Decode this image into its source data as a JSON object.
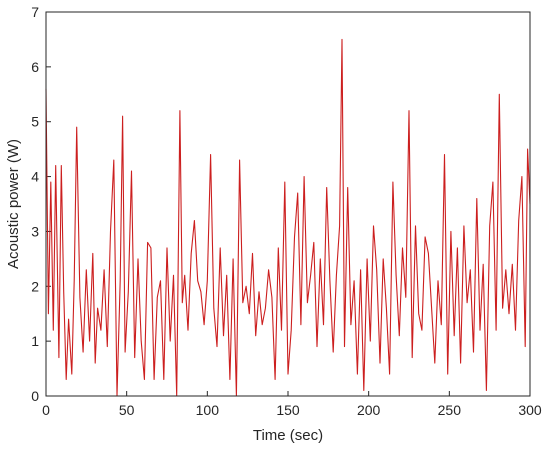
{
  "chart_data": {
    "type": "line",
    "title": "",
    "xlabel": "Time (sec)",
    "ylabel": "Acoustic power (W)",
    "xlim": [
      0,
      300
    ],
    "ylim": [
      0,
      7
    ],
    "xticks": [
      0,
      50,
      100,
      150,
      200,
      250,
      300
    ],
    "yticks": [
      0,
      1,
      2,
      3,
      4,
      5,
      6,
      7
    ],
    "grid": false,
    "legend": "none",
    "line_color": "#cc1f1f",
    "series": [
      {
        "x": [
          0,
          1.5,
          3,
          4.5,
          6,
          8,
          9.5,
          11,
          12.5,
          14,
          16,
          17.5,
          19,
          21,
          23,
          25,
          27,
          29,
          30.5,
          32,
          34,
          36,
          38,
          40,
          42,
          44,
          46,
          47.5,
          49,
          51,
          53,
          55,
          57,
          59,
          61,
          63,
          65,
          67,
          69,
          71,
          73,
          75,
          77,
          79,
          81,
          83,
          84.5,
          86,
          88,
          90,
          92,
          94,
          96,
          98,
          100,
          102,
          104,
          106,
          108,
          110,
          112,
          114,
          116,
          118,
          120,
          122,
          124,
          126,
          128,
          130,
          132,
          134,
          136,
          138,
          140,
          142,
          144,
          146,
          148,
          150,
          152,
          154,
          156,
          158,
          160,
          162,
          164,
          166,
          168,
          170,
          172,
          174,
          176,
          178,
          180,
          182,
          183.5,
          185,
          187,
          189,
          191,
          193,
          195,
          197,
          199,
          201,
          203,
          205,
          207,
          209,
          211,
          213,
          215,
          217,
          219,
          221,
          223,
          225,
          227,
          229,
          231,
          233,
          235,
          237,
          239,
          241,
          243,
          245,
          247,
          249,
          251,
          253,
          255,
          257,
          259,
          261,
          263,
          265,
          267,
          269,
          271,
          273,
          275,
          277,
          279,
          281,
          283,
          285,
          287,
          289,
          291,
          293,
          295,
          297,
          298.5,
          300
        ],
        "y": [
          5.6,
          1.5,
          3.9,
          1.2,
          4.2,
          0.7,
          4.2,
          1.9,
          0.3,
          1.4,
          0.4,
          2.1,
          4.9,
          1.8,
          0.8,
          2.3,
          1.0,
          2.6,
          0.6,
          1.6,
          1.2,
          2.3,
          0.9,
          3.0,
          4.3,
          0.0,
          2.1,
          5.1,
          0.8,
          1.9,
          4.1,
          0.7,
          2.5,
          1.0,
          0.3,
          2.8,
          2.7,
          0.3,
          1.8,
          2.1,
          0.3,
          2.7,
          1.0,
          2.2,
          0.0,
          5.2,
          1.7,
          2.2,
          1.2,
          2.6,
          3.2,
          2.1,
          1.9,
          1.3,
          2.1,
          4.4,
          1.6,
          0.9,
          2.7,
          1.1,
          2.2,
          0.3,
          2.5,
          0.0,
          4.3,
          1.7,
          2.0,
          1.5,
          2.6,
          1.1,
          1.9,
          1.3,
          1.6,
          2.3,
          1.8,
          0.3,
          2.7,
          1.2,
          3.9,
          0.4,
          1.2,
          2.9,
          3.7,
          1.3,
          4.0,
          1.7,
          2.2,
          2.8,
          0.9,
          2.5,
          1.3,
          3.8,
          2.1,
          0.8,
          2.2,
          3.1,
          6.5,
          0.9,
          3.8,
          1.3,
          2.1,
          0.4,
          2.3,
          0.1,
          2.5,
          1.0,
          3.1,
          2.3,
          0.6,
          2.5,
          1.6,
          0.4,
          3.9,
          2.2,
          1.1,
          2.7,
          1.8,
          5.2,
          0.7,
          3.1,
          1.5,
          1.2,
          2.9,
          2.6,
          1.6,
          0.6,
          2.1,
          1.3,
          4.4,
          0.4,
          3.0,
          1.1,
          2.7,
          0.6,
          3.1,
          1.7,
          2.3,
          0.8,
          3.6,
          1.2,
          2.4,
          0.1,
          3.1,
          3.9,
          1.2,
          5.5,
          1.6,
          2.3,
          1.5,
          2.4,
          1.2,
          3.2,
          4.0,
          0.9,
          4.5,
          3.5
        ]
      }
    ]
  }
}
